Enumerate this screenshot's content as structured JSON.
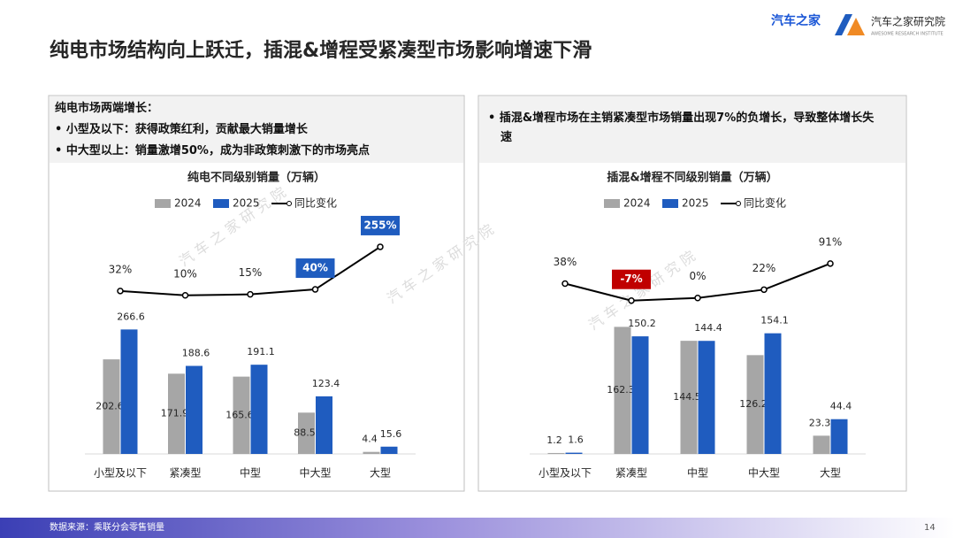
{
  "header": {
    "title": "纯电市场结构向上跃迁，插混&增程受紧凑型市场影响增速下滑",
    "logo": "汽车之家",
    "institute": "汽车之家研究院",
    "institute_en": "AWESOME RESEARCH INSTITUTE"
  },
  "panels": [
    {
      "notes": [
        "纯电市场两端增长：",
        "• 小型及以下：获得政策红利，贡献最大销量增长",
        "• 中大型以上：销量激增50%，成为非政策刺激下的市场亮点"
      ]
    },
    {
      "notes": [
        "• 插混&增程市场在主销紧凑型市场销量出现7%的负增长，导致整体增长失速"
      ]
    }
  ],
  "watermark": "汽 车 之 家 研 究 院",
  "footer": {
    "source": "数据来源：乘联分会零售销量",
    "page": 14
  },
  "chart_data": [
    {
      "type": "bar",
      "title": "纯电不同级别销量（万辆）",
      "categories": [
        "小型及以下",
        "紧凑型",
        "中型",
        "中大型",
        "大型"
      ],
      "series": [
        {
          "name": "2024",
          "color": "#a6a6a6",
          "values": [
            202.6,
            171.9,
            165.6,
            88.5,
            4.4
          ]
        },
        {
          "name": "2025",
          "color": "#1f5cbf",
          "values": [
            266.6,
            188.6,
            191.1,
            123.4,
            15.6
          ]
        },
        {
          "name": "同比变化",
          "type": "line",
          "axis": "y2",
          "color": "#000000",
          "values": [
            32,
            10,
            15,
            40,
            255
          ],
          "value_labels": [
            "32%",
            "10%",
            "15%",
            "40%",
            "255%"
          ],
          "label_box_colors": [
            null,
            null,
            null,
            "#1f5cbf",
            "#1f5cbf"
          ]
        }
      ],
      "ylim": [
        0,
        290
      ],
      "y2lim": [
        0,
        295
      ],
      "legend": "top"
    },
    {
      "type": "bar",
      "title": "插混&增程不同级别销量（万辆）",
      "categories": [
        "小型及以下",
        "紧凑型",
        "中型",
        "中大型",
        "大型"
      ],
      "series": [
        {
          "name": "2024",
          "color": "#a6a6a6",
          "values": [
            1.2,
            162.3,
            144.5,
            126.2,
            23.3
          ]
        },
        {
          "name": "2025",
          "color": "#1f5cbf",
          "values": [
            1.6,
            150.2,
            144.4,
            154.1,
            44.4
          ]
        },
        {
          "name": "同比变化",
          "type": "line",
          "axis": "y2",
          "color": "#000000",
          "values": [
            38,
            -7,
            0,
            22,
            91
          ],
          "value_labels": [
            "38%",
            "-7%",
            "0%",
            "22%",
            "91%"
          ],
          "label_box_colors": [
            null,
            "#c00000",
            null,
            null,
            null
          ]
        }
      ],
      "ylim": [
        0,
        165
      ],
      "y2lim": [
        -10,
        100
      ],
      "legend": "top"
    }
  ]
}
